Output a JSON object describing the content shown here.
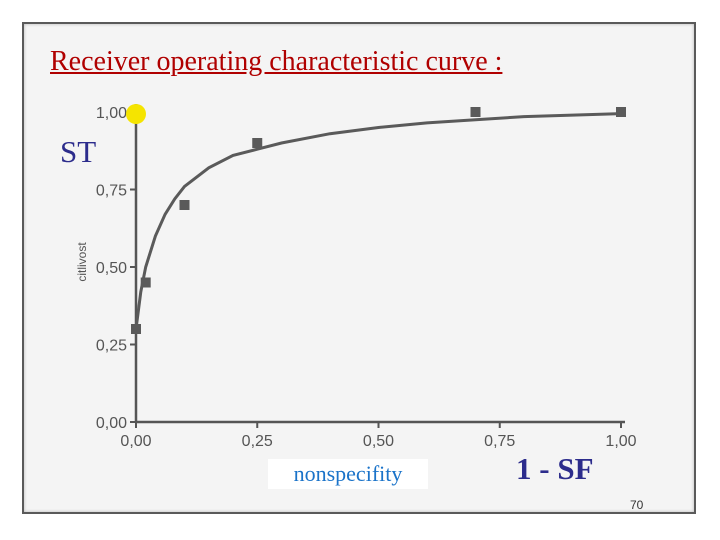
{
  "title": "Receiver operating characteristic curve :",
  "labels": {
    "st": "ST",
    "yaxis": "citlivost",
    "nonspecifity": "nonspecifity",
    "one_minus_sf": "1 - SF"
  },
  "page_number": "70",
  "colors": {
    "title": "#b00000",
    "annotation": "#2c2c8c",
    "nonspecifity": "#1a73c9",
    "highlight": "#f5e400",
    "data": "#5a5a5a"
  },
  "chart_data": {
    "type": "scatter",
    "x": [
      0.0,
      0.02,
      0.1,
      0.25,
      0.7,
      1.0
    ],
    "y": [
      0.3,
      0.45,
      0.7,
      0.9,
      1.0,
      1.0
    ],
    "fit_curve": {
      "x": [
        0.0,
        0.01,
        0.02,
        0.04,
        0.06,
        0.08,
        0.1,
        0.15,
        0.2,
        0.25,
        0.3,
        0.4,
        0.5,
        0.6,
        0.7,
        0.8,
        0.9,
        1.0
      ],
      "y": [
        0.3,
        0.42,
        0.5,
        0.6,
        0.67,
        0.72,
        0.76,
        0.82,
        0.86,
        0.88,
        0.9,
        0.93,
        0.95,
        0.965,
        0.975,
        0.985,
        0.99,
        0.995
      ]
    },
    "highlight_point": {
      "x": 0.0,
      "y": 1.0
    },
    "xlim": [
      0,
      1
    ],
    "ylim": [
      0,
      1
    ],
    "xticks": [
      "0,00",
      "0,25",
      "0,50",
      "0,75",
      "1,00"
    ],
    "yticks": [
      "0,00",
      "0,25",
      "0,50",
      "0,75",
      "1,00"
    ],
    "grid": false
  }
}
